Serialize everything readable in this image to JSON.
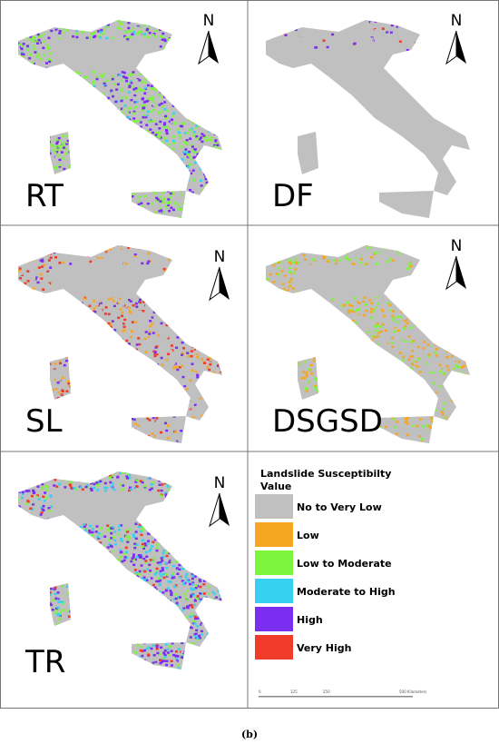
{
  "panels": [
    {
      "label": "RT",
      "north": "N"
    },
    {
      "label": "DF",
      "north": "N"
    },
    {
      "label": "SL",
      "north": "N"
    },
    {
      "label": "DSGSD",
      "north": "N"
    },
    {
      "label": "TR",
      "north": "N"
    }
  ],
  "legend": {
    "title": "Landslide Susceptibilty Value",
    "items": [
      {
        "label": "No to Very Low",
        "color": "#c0c0c0"
      },
      {
        "label": "Low",
        "color": "#f5a623"
      },
      {
        "label": "Low to Moderate",
        "color": "#7df53c"
      },
      {
        "label": "Moderate to High",
        "color": "#38d0f0"
      },
      {
        "label": "High",
        "color": "#7a2ff0"
      },
      {
        "label": "Very High",
        "color": "#f03a2a"
      }
    ]
  },
  "scale_bar": [
    "0",
    "125",
    "250",
    "500 Kilometers"
  ],
  "caption": "(b)"
}
